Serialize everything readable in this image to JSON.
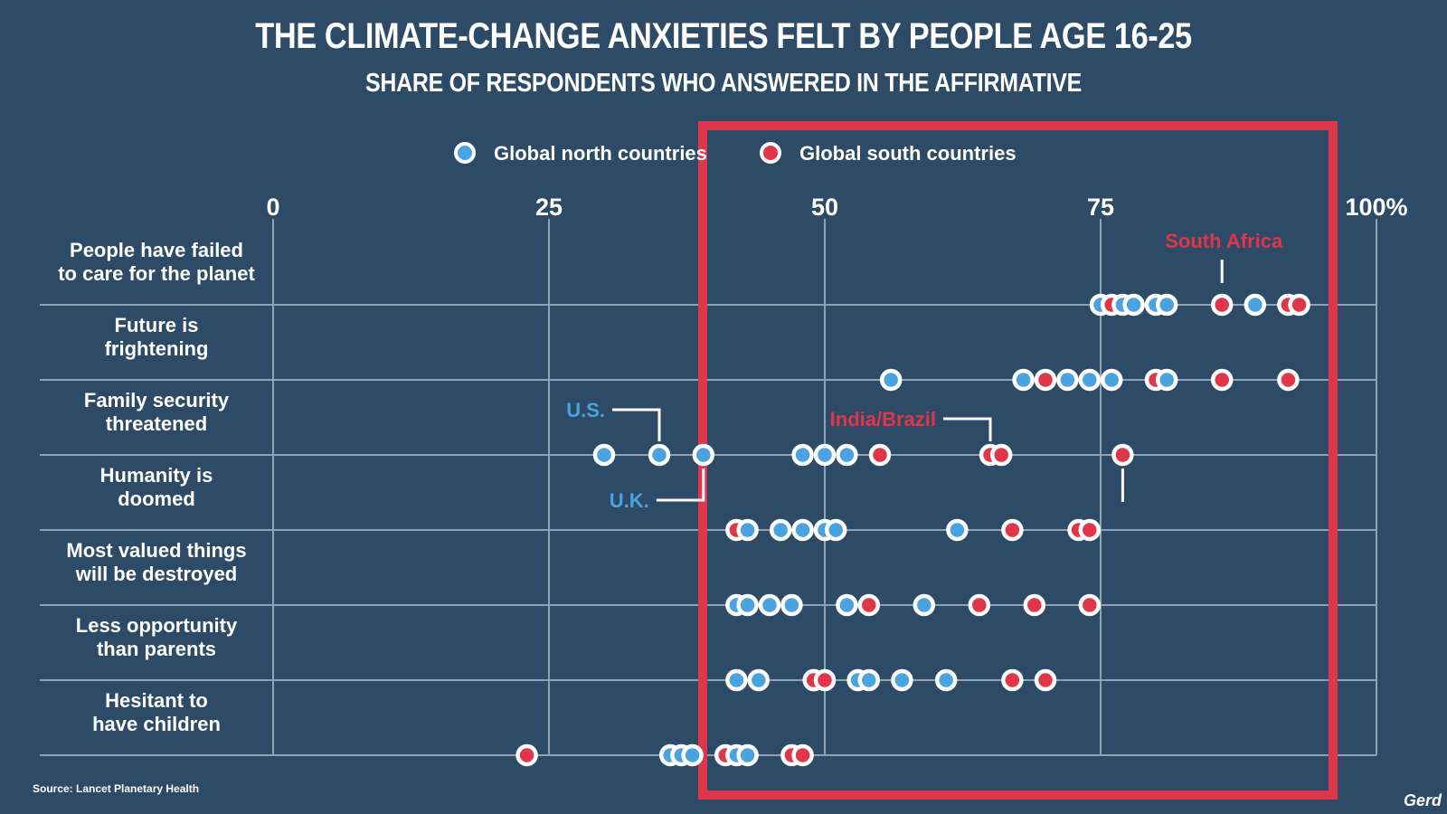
{
  "chart_data": {
    "type": "scatter",
    "title": "THE CLIMATE-CHANGE ANXIETIES FELT BY PEOPLE AGE 16-25",
    "subtitle": "SHARE OF RESPONDENTS WHO ANSWERED IN THE AFFIRMATIVE",
    "x_ticks": [
      "0",
      "25",
      "50",
      "75",
      "100%"
    ],
    "x_tick_values": [
      0,
      25,
      50,
      75,
      100
    ],
    "xlim": [
      0,
      100
    ],
    "categories": [
      "People have failed to care for the planet",
      "Future is frightening",
      "Family security threatened",
      "Humanity is doomed",
      "Most valued things will be destroyed",
      "Less opportunity than parents",
      "Hesitant to have children"
    ],
    "category_lines": [
      [
        "People have failed",
        "to care for the planet"
      ],
      [
        "Future is",
        "frightening"
      ],
      [
        "Family security",
        "threatened"
      ],
      [
        "Humanity is",
        "doomed"
      ],
      [
        "Most valued things",
        "will be destroyed"
      ],
      [
        "Less opportunity",
        "than parents"
      ],
      [
        "Hesitant to",
        "have children"
      ]
    ],
    "legend": [
      {
        "name": "Global north countries",
        "color": "#4aa3df"
      },
      {
        "name": "Global south countries",
        "color": "#e0364a"
      }
    ],
    "series": [
      {
        "name": "Global north countries",
        "values": [
          [
            75,
            77,
            78,
            80,
            81,
            89
          ],
          [
            56,
            68,
            72,
            74,
            76,
            81
          ],
          [
            30,
            35,
            39,
            48,
            50,
            52
          ],
          [
            43,
            46,
            48,
            50,
            51,
            62
          ],
          [
            42,
            43,
            45,
            47,
            52,
            59
          ],
          [
            42,
            44,
            49,
            53,
            54,
            57,
            61
          ],
          [
            36,
            37,
            38,
            42,
            43
          ]
        ]
      },
      {
        "name": "Global south countries",
        "values": [
          [
            76,
            86,
            92,
            93
          ],
          [
            70,
            80,
            86,
            92
          ],
          [
            55,
            65,
            66,
            77
          ],
          [
            42,
            67,
            73,
            74
          ],
          [
            54,
            64,
            69,
            74
          ],
          [
            49,
            50,
            67,
            70
          ],
          [
            23,
            41,
            47,
            48
          ]
        ]
      }
    ],
    "annotations": [
      {
        "text": "South Africa",
        "color": "#e0364a",
        "x": 86,
        "category": "People have failed to care for the planet"
      },
      {
        "text": "U.S.",
        "color": "#4aa3df",
        "x": 35,
        "category": "Family security threatened"
      },
      {
        "text": "U.K.",
        "color": "#4aa3df",
        "x": 39,
        "category": "Family security threatened"
      },
      {
        "text": "India/Brazil",
        "color": "#e0364a",
        "x": 65,
        "category": "Family security threatened"
      }
    ],
    "highlight_range": [
      40,
      95
    ],
    "highlight_color": "#e0364a"
  },
  "source": "Source: Lancet Planetary Health",
  "logo": "Gerd",
  "colors": {
    "background": "#2d4a66",
    "grid": "#8fa3b6",
    "north": "#4aa3df",
    "south": "#e0364a"
  }
}
